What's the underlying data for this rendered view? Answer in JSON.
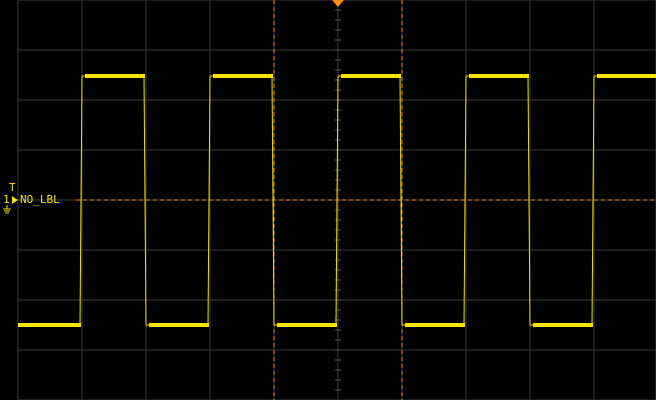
{
  "channel": {
    "number": "1",
    "trigger_marker": "T",
    "label": "NO_LBL",
    "color": "#f5e400"
  },
  "colors": {
    "background": "#000000",
    "grid": "#3a3a3a",
    "cursor": "#ff8a1e",
    "trigger_level": "#ff8a1e"
  },
  "icons": {
    "ground": "ground-icon",
    "trigger_position": "orange-triangle-icon"
  },
  "waveform": {
    "type": "square",
    "duty_cycle": 0.5,
    "periods_visible": 5,
    "grid_divisions_x": 10,
    "grid_divisions_y": 8
  }
}
